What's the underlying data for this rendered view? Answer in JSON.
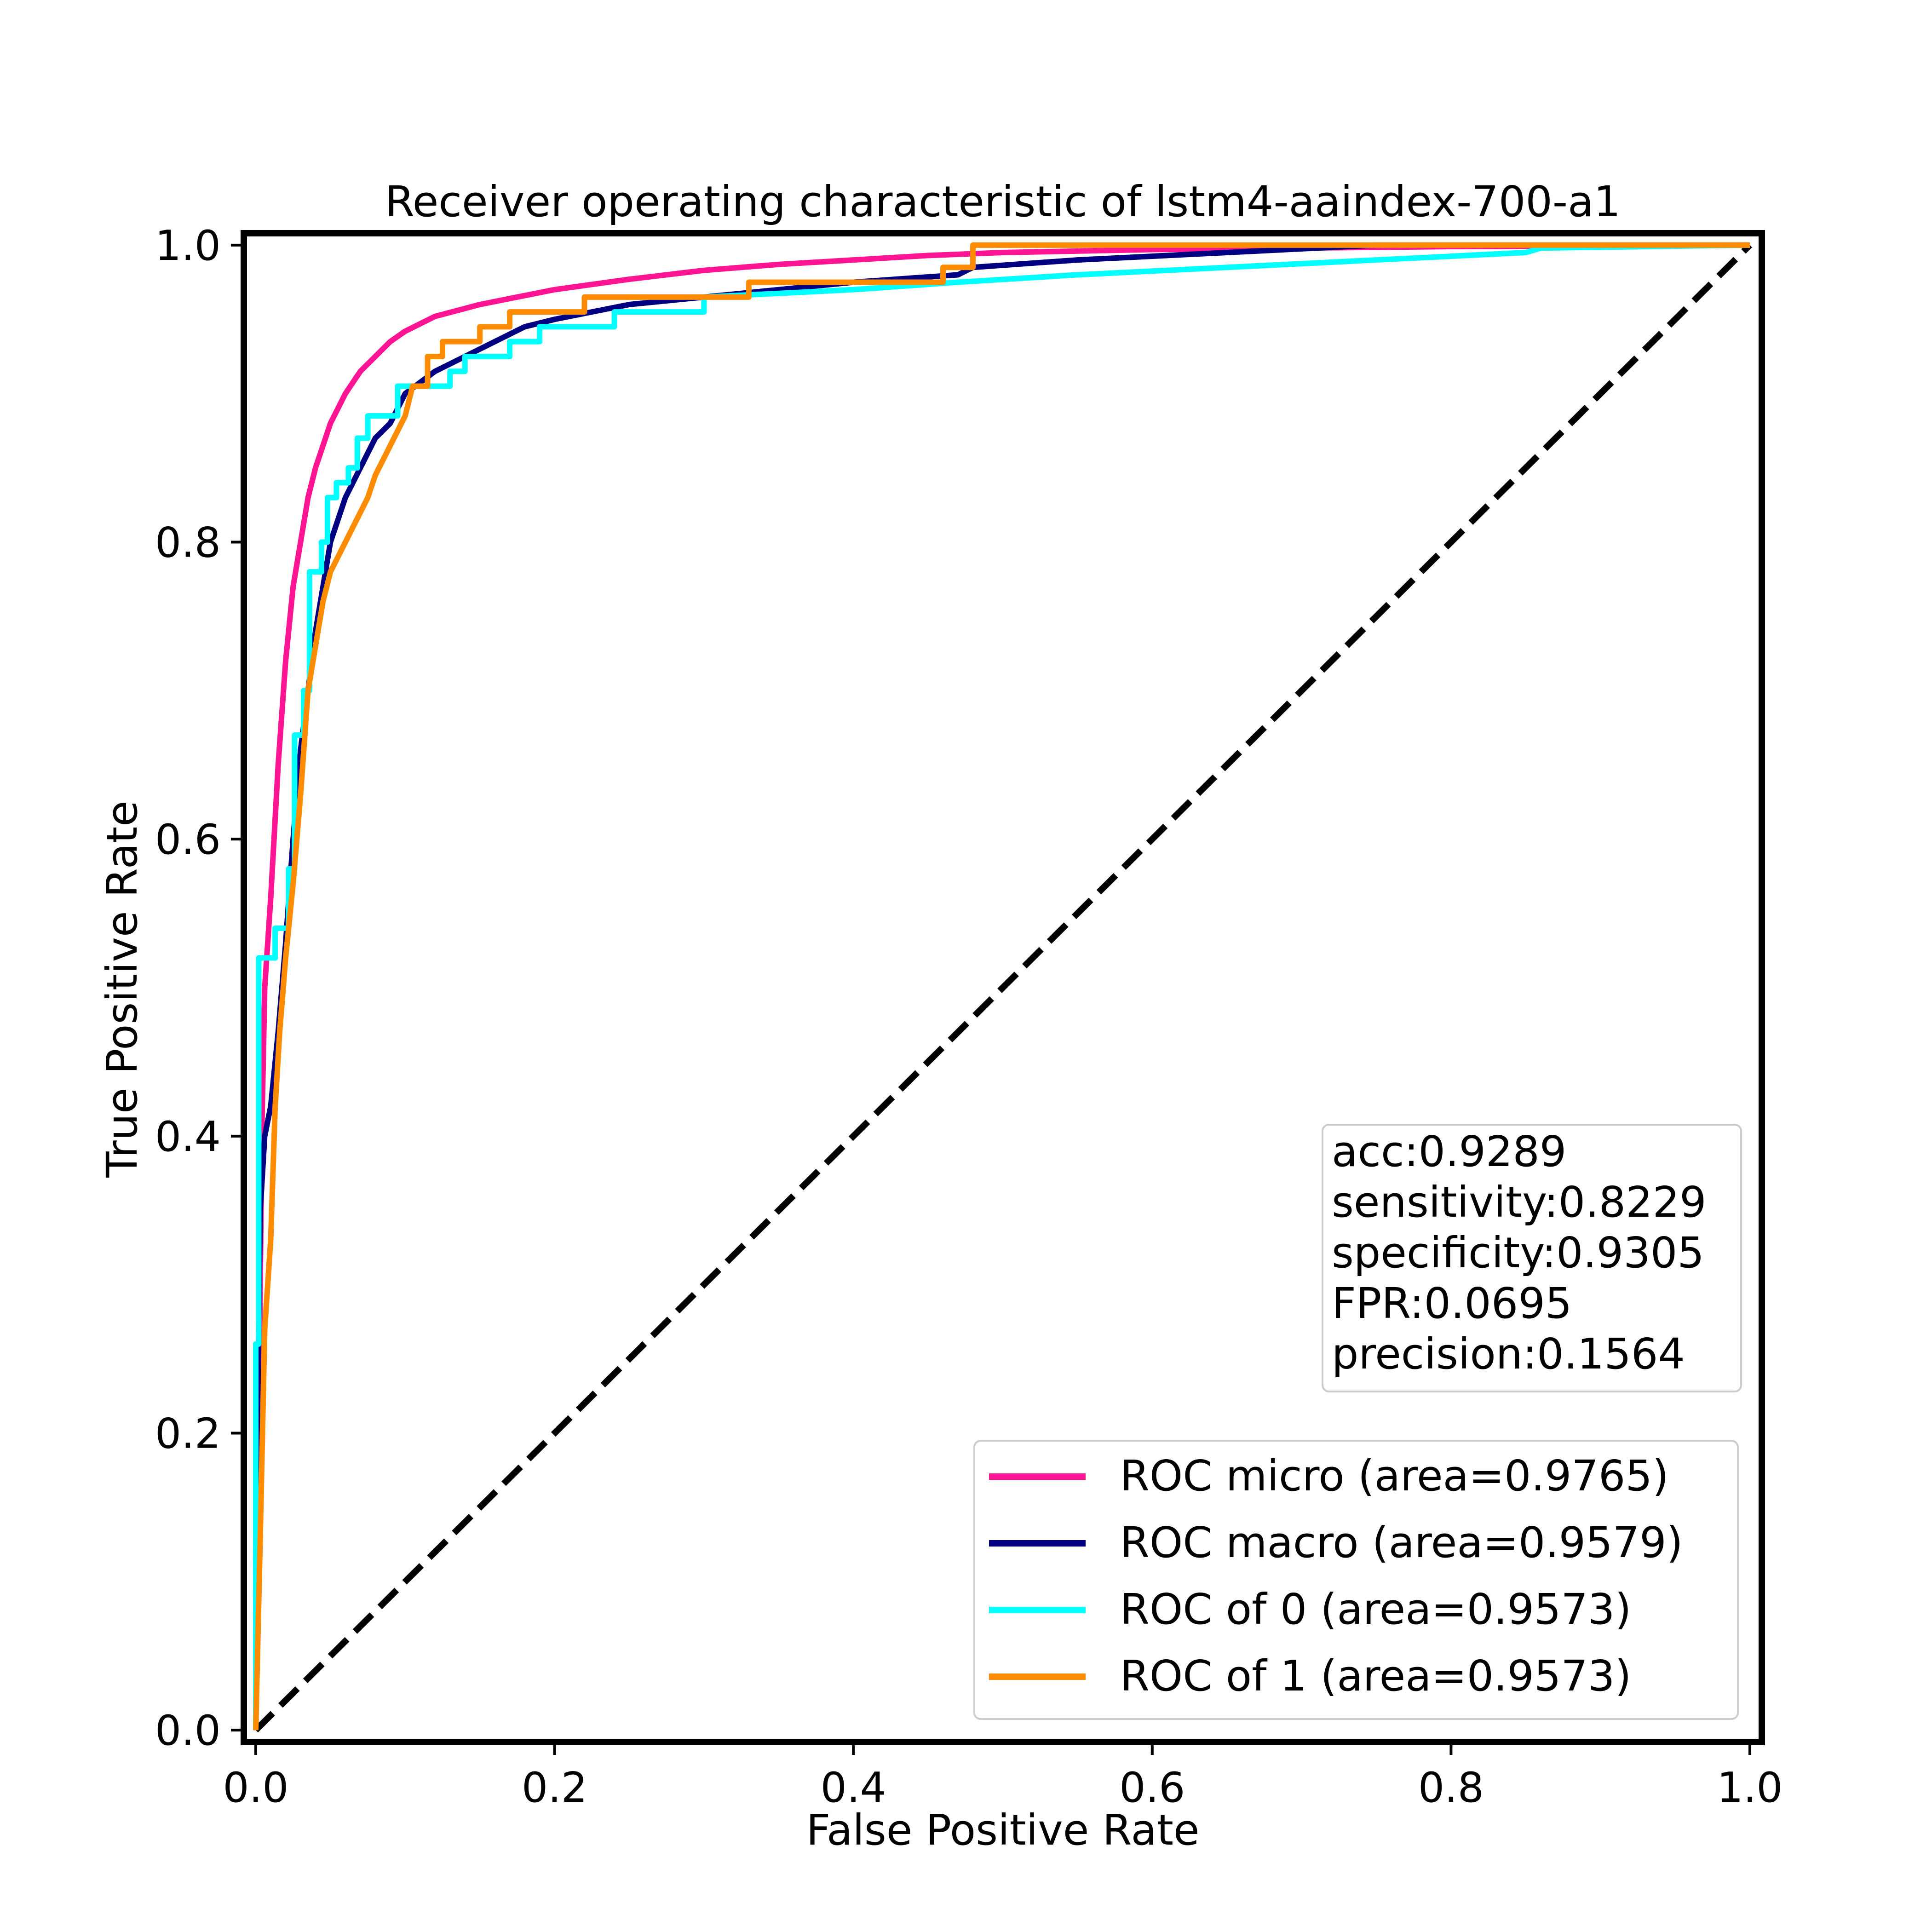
{
  "chart_data": {
    "type": "line",
    "title": "Receiver operating characteristic of lstm4-aaindex-700-a1",
    "xlabel": "False Positive Rate",
    "ylabel": "True Positive Rate",
    "xlim": [
      -0.008,
      1.008
    ],
    "ylim": [
      -0.008,
      1.008
    ],
    "x_ticks": [
      "0.0",
      "0.2",
      "0.4",
      "0.6",
      "0.8",
      "1.0"
    ],
    "y_ticks": [
      "0.0",
      "0.2",
      "0.4",
      "0.6",
      "0.8",
      "1.0"
    ],
    "grid": false,
    "legend_position": "lower-right",
    "metrics_box_position": "right",
    "metrics": [
      "acc:0.9289",
      "sensitivity:0.8229",
      "specificity:0.9305",
      "FPR:0.0695",
      "precision:0.1564"
    ],
    "series": [
      {
        "name": "ROC micro (area=0.9765)",
        "color": "#ff1493",
        "points": [
          [
            0,
            0
          ],
          [
            0.002,
            0.2
          ],
          [
            0.004,
            0.4
          ],
          [
            0.006,
            0.5
          ],
          [
            0.01,
            0.56
          ],
          [
            0.015,
            0.65
          ],
          [
            0.02,
            0.72
          ],
          [
            0.025,
            0.77
          ],
          [
            0.03,
            0.8
          ],
          [
            0.035,
            0.83
          ],
          [
            0.04,
            0.85
          ],
          [
            0.05,
            0.88
          ],
          [
            0.06,
            0.9
          ],
          [
            0.07,
            0.915
          ],
          [
            0.08,
            0.925
          ],
          [
            0.09,
            0.935
          ],
          [
            0.1,
            0.942
          ],
          [
            0.12,
            0.952
          ],
          [
            0.15,
            0.96
          ],
          [
            0.2,
            0.97
          ],
          [
            0.25,
            0.977
          ],
          [
            0.3,
            0.983
          ],
          [
            0.35,
            0.987
          ],
          [
            0.4,
            0.99
          ],
          [
            0.45,
            0.993
          ],
          [
            0.5,
            0.995
          ],
          [
            0.6,
            0.997
          ],
          [
            0.7,
            0.998
          ],
          [
            0.8,
            0.999
          ],
          [
            1,
            1
          ]
        ]
      },
      {
        "name": "ROC macro (area=0.9579)",
        "color": "#000080",
        "points": [
          [
            0,
            0
          ],
          [
            0.001,
            0.2
          ],
          [
            0.003,
            0.35
          ],
          [
            0.006,
            0.4
          ],
          [
            0.01,
            0.42
          ],
          [
            0.015,
            0.47
          ],
          [
            0.02,
            0.53
          ],
          [
            0.025,
            0.6
          ],
          [
            0.03,
            0.66
          ],
          [
            0.035,
            0.7
          ],
          [
            0.04,
            0.74
          ],
          [
            0.045,
            0.77
          ],
          [
            0.05,
            0.8
          ],
          [
            0.06,
            0.83
          ],
          [
            0.07,
            0.85
          ],
          [
            0.08,
            0.87
          ],
          [
            0.09,
            0.88
          ],
          [
            0.1,
            0.9
          ],
          [
            0.12,
            0.915
          ],
          [
            0.14,
            0.925
          ],
          [
            0.16,
            0.935
          ],
          [
            0.18,
            0.945
          ],
          [
            0.2,
            0.95
          ],
          [
            0.25,
            0.96
          ],
          [
            0.3,
            0.965
          ],
          [
            0.35,
            0.97
          ],
          [
            0.4,
            0.975
          ],
          [
            0.47,
            0.98
          ],
          [
            0.48,
            0.985
          ],
          [
            0.55,
            0.99
          ],
          [
            0.65,
            0.995
          ],
          [
            0.75,
            1
          ],
          [
            1,
            1
          ]
        ]
      },
      {
        "name": "ROC of 0 (area=0.9573)",
        "color": "#00ffff",
        "points": [
          [
            0,
            0
          ],
          [
            0,
            0.26
          ],
          [
            0.002,
            0.26
          ],
          [
            0.002,
            0.52
          ],
          [
            0.013,
            0.52
          ],
          [
            0.013,
            0.54
          ],
          [
            0.022,
            0.54
          ],
          [
            0.022,
            0.58
          ],
          [
            0.026,
            0.58
          ],
          [
            0.026,
            0.67
          ],
          [
            0.032,
            0.67
          ],
          [
            0.032,
            0.7
          ],
          [
            0.036,
            0.7
          ],
          [
            0.036,
            0.78
          ],
          [
            0.044,
            0.78
          ],
          [
            0.044,
            0.8
          ],
          [
            0.048,
            0.8
          ],
          [
            0.048,
            0.83
          ],
          [
            0.054,
            0.83
          ],
          [
            0.054,
            0.84
          ],
          [
            0.062,
            0.84
          ],
          [
            0.062,
            0.85
          ],
          [
            0.068,
            0.85
          ],
          [
            0.068,
            0.87
          ],
          [
            0.075,
            0.87
          ],
          [
            0.075,
            0.885
          ],
          [
            0.095,
            0.885
          ],
          [
            0.095,
            0.905
          ],
          [
            0.13,
            0.905
          ],
          [
            0.13,
            0.915
          ],
          [
            0.14,
            0.915
          ],
          [
            0.14,
            0.925
          ],
          [
            0.17,
            0.925
          ],
          [
            0.17,
            0.935
          ],
          [
            0.19,
            0.935
          ],
          [
            0.19,
            0.945
          ],
          [
            0.24,
            0.945
          ],
          [
            0.24,
            0.955
          ],
          [
            0.3,
            0.955
          ],
          [
            0.3,
            0.965
          ],
          [
            0.4,
            0.97
          ],
          [
            0.47,
            0.975
          ],
          [
            0.55,
            0.98
          ],
          [
            0.65,
            0.985
          ],
          [
            0.75,
            0.99
          ],
          [
            0.85,
            0.995
          ],
          [
            0.86,
            0.998
          ],
          [
            1,
            1
          ]
        ]
      },
      {
        "name": "ROC of 1 (area=0.9573)",
        "color": "#ff8c00",
        "points": [
          [
            0,
            0
          ],
          [
            0.003,
            0.13
          ],
          [
            0.006,
            0.27
          ],
          [
            0.01,
            0.33
          ],
          [
            0.013,
            0.42
          ],
          [
            0.016,
            0.47
          ],
          [
            0.02,
            0.52
          ],
          [
            0.025,
            0.57
          ],
          [
            0.03,
            0.63
          ],
          [
            0.035,
            0.7
          ],
          [
            0.04,
            0.73
          ],
          [
            0.045,
            0.76
          ],
          [
            0.05,
            0.78
          ],
          [
            0.055,
            0.79
          ],
          [
            0.06,
            0.8
          ],
          [
            0.065,
            0.81
          ],
          [
            0.07,
            0.82
          ],
          [
            0.075,
            0.83
          ],
          [
            0.08,
            0.845
          ],
          [
            0.085,
            0.855
          ],
          [
            0.09,
            0.865
          ],
          [
            0.095,
            0.875
          ],
          [
            0.1,
            0.885
          ],
          [
            0.105,
            0.905
          ],
          [
            0.115,
            0.905
          ],
          [
            0.115,
            0.925
          ],
          [
            0.125,
            0.925
          ],
          [
            0.125,
            0.935
          ],
          [
            0.15,
            0.935
          ],
          [
            0.15,
            0.945
          ],
          [
            0.17,
            0.945
          ],
          [
            0.17,
            0.955
          ],
          [
            0.22,
            0.955
          ],
          [
            0.22,
            0.965
          ],
          [
            0.33,
            0.965
          ],
          [
            0.33,
            0.975
          ],
          [
            0.46,
            0.975
          ],
          [
            0.46,
            0.985
          ],
          [
            0.48,
            0.985
          ],
          [
            0.48,
            1
          ],
          [
            1,
            1
          ]
        ]
      }
    ],
    "reference_line": {
      "points": [
        [
          0,
          0
        ],
        [
          1,
          1
        ]
      ],
      "color": "#000000",
      "style": "dashed"
    }
  }
}
